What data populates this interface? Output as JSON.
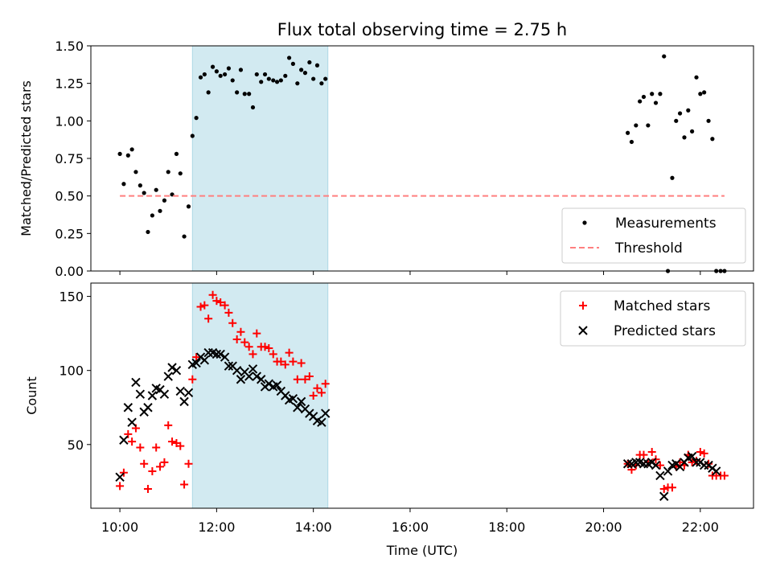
{
  "chart_data": {
    "type": "scatter",
    "title": "Flux total observing time = 2.75 h",
    "xlabel": "Time (UTC)",
    "x_unit": "hours UTC",
    "xlim": [
      9.4,
      23.1
    ],
    "x_ticks": [
      {
        "value": 10,
        "label": "10:00"
      },
      {
        "value": 12,
        "label": "12:00"
      },
      {
        "value": 14,
        "label": "14:00"
      },
      {
        "value": 16,
        "label": "16:00"
      },
      {
        "value": 18,
        "label": "18:00"
      },
      {
        "value": 20,
        "label": "20:00"
      },
      {
        "value": 22,
        "label": "22:00"
      }
    ],
    "highlight_span": [
      11.5,
      14.3
    ],
    "colors": {
      "highlight": "#add8e6",
      "threshold": "#ff7f7f",
      "matched": "#ff0000",
      "predicted": "#000000",
      "measurement": "#000000"
    },
    "panels": [
      {
        "ylabel": "Matched/Predicted stars",
        "ylim": [
          0,
          1.5
        ],
        "y_ticks": [
          "0.00",
          "0.25",
          "0.50",
          "0.75",
          "1.00",
          "1.25",
          "1.50"
        ],
        "legend": {
          "placement": "lower-right"
        },
        "series": [
          {
            "name": "Measurements",
            "kind": "dot",
            "points": [
              [
                10.0,
                0.78
              ],
              [
                10.08,
                0.58
              ],
              [
                10.17,
                0.77
              ],
              [
                10.25,
                0.81
              ],
              [
                10.33,
                0.66
              ],
              [
                10.42,
                0.57
              ],
              [
                10.5,
                0.52
              ],
              [
                10.58,
                0.26
              ],
              [
                10.67,
                0.37
              ],
              [
                10.75,
                0.54
              ],
              [
                10.83,
                0.4
              ],
              [
                10.92,
                0.47
              ],
              [
                11.0,
                0.66
              ],
              [
                11.08,
                0.51
              ],
              [
                11.17,
                0.78
              ],
              [
                11.25,
                0.65
              ],
              [
                11.33,
                0.23
              ],
              [
                11.42,
                0.43
              ],
              [
                11.5,
                0.9
              ],
              [
                11.58,
                1.02
              ],
              [
                11.67,
                1.29
              ],
              [
                11.75,
                1.31
              ],
              [
                11.83,
                1.19
              ],
              [
                11.92,
                1.36
              ],
              [
                12.0,
                1.33
              ],
              [
                12.08,
                1.3
              ],
              [
                12.17,
                1.31
              ],
              [
                12.25,
                1.35
              ],
              [
                12.33,
                1.27
              ],
              [
                12.42,
                1.19
              ],
              [
                12.5,
                1.34
              ],
              [
                12.58,
                1.18
              ],
              [
                12.67,
                1.18
              ],
              [
                12.75,
                1.09
              ],
              [
                12.83,
                1.31
              ],
              [
                12.92,
                1.26
              ],
              [
                13.0,
                1.31
              ],
              [
                13.08,
                1.28
              ],
              [
                13.17,
                1.27
              ],
              [
                13.25,
                1.26
              ],
              [
                13.33,
                1.27
              ],
              [
                13.42,
                1.3
              ],
              [
                13.5,
                1.42
              ],
              [
                13.58,
                1.38
              ],
              [
                13.67,
                1.25
              ],
              [
                13.75,
                1.34
              ],
              [
                13.83,
                1.32
              ],
              [
                13.92,
                1.39
              ],
              [
                14.0,
                1.28
              ],
              [
                14.08,
                1.37
              ],
              [
                14.17,
                1.25
              ],
              [
                14.25,
                1.28
              ],
              [
                20.5,
                0.92
              ],
              [
                20.58,
                0.86
              ],
              [
                20.67,
                0.97
              ],
              [
                20.75,
                1.13
              ],
              [
                20.83,
                1.16
              ],
              [
                20.92,
                0.97
              ],
              [
                21.0,
                1.18
              ],
              [
                21.08,
                1.12
              ],
              [
                21.17,
                1.18
              ],
              [
                21.25,
                1.43
              ],
              [
                21.33,
                0.0
              ],
              [
                21.42,
                0.62
              ],
              [
                21.5,
                1.0
              ],
              [
                21.58,
                1.05
              ],
              [
                21.67,
                0.89
              ],
              [
                21.75,
                1.07
              ],
              [
                21.83,
                0.93
              ],
              [
                21.92,
                1.29
              ],
              [
                22.0,
                1.18
              ],
              [
                22.08,
                1.19
              ],
              [
                22.17,
                1.0
              ],
              [
                22.25,
                0.88
              ],
              [
                22.33,
                0.0
              ],
              [
                22.42,
                0.0
              ],
              [
                22.5,
                0.0
              ]
            ]
          },
          {
            "name": "Threshold",
            "kind": "dashed-line",
            "points": [
              [
                10.0,
                0.5
              ],
              [
                22.5,
                0.5
              ]
            ]
          }
        ]
      },
      {
        "ylabel": "Count",
        "ylim": [
          7,
          159
        ],
        "y_ticks": [
          "50",
          "100",
          "150"
        ],
        "legend": {
          "placement": "top-right"
        },
        "series": [
          {
            "name": "Matched stars",
            "kind": "plus",
            "points": [
              [
                10.0,
                22
              ],
              [
                10.08,
                31
              ],
              [
                10.17,
                57
              ],
              [
                10.25,
                52
              ],
              [
                10.33,
                61
              ],
              [
                10.42,
                48
              ],
              [
                10.5,
                37
              ],
              [
                10.58,
                20
              ],
              [
                10.67,
                32
              ],
              [
                10.75,
                48
              ],
              [
                10.83,
                35
              ],
              [
                10.92,
                38
              ],
              [
                11.0,
                63
              ],
              [
                11.08,
                52
              ],
              [
                11.17,
                51
              ],
              [
                11.25,
                49
              ],
              [
                11.33,
                23
              ],
              [
                11.42,
                37
              ],
              [
                11.5,
                94
              ],
              [
                11.58,
                109
              ],
              [
                11.67,
                143
              ],
              [
                11.75,
                144
              ],
              [
                11.83,
                135
              ],
              [
                11.92,
                151
              ],
              [
                12.0,
                147
              ],
              [
                12.08,
                146
              ],
              [
                12.17,
                144
              ],
              [
                12.25,
                139
              ],
              [
                12.33,
                132
              ],
              [
                12.42,
                121
              ],
              [
                12.5,
                126
              ],
              [
                12.58,
                119
              ],
              [
                12.67,
                116
              ],
              [
                12.75,
                111
              ],
              [
                12.83,
                125
              ],
              [
                12.92,
                116
              ],
              [
                13.0,
                116
              ],
              [
                13.08,
                115
              ],
              [
                13.17,
                111
              ],
              [
                13.25,
                106
              ],
              [
                13.33,
                106
              ],
              [
                13.42,
                104
              ],
              [
                13.5,
                112
              ],
              [
                13.58,
                106
              ],
              [
                13.67,
                94
              ],
              [
                13.75,
                105
              ],
              [
                13.83,
                94
              ],
              [
                13.92,
                96
              ],
              [
                14.0,
                83
              ],
              [
                14.08,
                88
              ],
              [
                14.17,
                85
              ],
              [
                14.25,
                91
              ],
              [
                20.5,
                37
              ],
              [
                20.58,
                33
              ],
              [
                20.67,
                36
              ],
              [
                20.75,
                43
              ],
              [
                20.83,
                43
              ],
              [
                20.92,
                38
              ],
              [
                21.0,
                45
              ],
              [
                21.08,
                40
              ],
              [
                21.17,
                36
              ],
              [
                21.25,
                20
              ],
              [
                21.33,
                21
              ],
              [
                21.42,
                21
              ],
              [
                21.5,
                35
              ],
              [
                21.58,
                38
              ],
              [
                21.67,
                36
              ],
              [
                21.75,
                43
              ],
              [
                21.83,
                38
              ],
              [
                21.92,
                39
              ],
              [
                22.0,
                45
              ],
              [
                22.08,
                44
              ],
              [
                22.17,
                37
              ],
              [
                22.25,
                29
              ],
              [
                22.33,
                29
              ],
              [
                22.42,
                29
              ],
              [
                22.5,
                29
              ]
            ]
          },
          {
            "name": "Predicted stars",
            "kind": "cross",
            "points": [
              [
                10.0,
                28
              ],
              [
                10.08,
                53
              ],
              [
                10.17,
                75
              ],
              [
                10.25,
                65
              ],
              [
                10.33,
                92
              ],
              [
                10.42,
                84
              ],
              [
                10.5,
                72
              ],
              [
                10.58,
                75
              ],
              [
                10.67,
                83
              ],
              [
                10.75,
                88
              ],
              [
                10.83,
                87
              ],
              [
                10.92,
                84
              ],
              [
                11.0,
                96
              ],
              [
                11.08,
                102
              ],
              [
                11.17,
                100
              ],
              [
                11.25,
                86
              ],
              [
                11.33,
                79
              ],
              [
                11.42,
                85
              ],
              [
                11.5,
                104
              ],
              [
                11.58,
                105
              ],
              [
                11.67,
                109
              ],
              [
                11.75,
                107
              ],
              [
                11.83,
                112
              ],
              [
                11.92,
                112
              ],
              [
                12.0,
                111
              ],
              [
                12.08,
                111
              ],
              [
                12.17,
                109
              ],
              [
                12.25,
                103
              ],
              [
                12.33,
                103
              ],
              [
                12.42,
                100
              ],
              [
                12.5,
                94
              ],
              [
                12.58,
                99
              ],
              [
                12.67,
                96
              ],
              [
                12.75,
                101
              ],
              [
                12.83,
                96
              ],
              [
                12.92,
                94
              ],
              [
                13.0,
                89
              ],
              [
                13.08,
                91
              ],
              [
                13.17,
                89
              ],
              [
                13.25,
                90
              ],
              [
                13.33,
                86
              ],
              [
                13.42,
                83
              ],
              [
                13.5,
                80
              ],
              [
                13.58,
                81
              ],
              [
                13.67,
                75
              ],
              [
                13.75,
                79
              ],
              [
                13.83,
                74
              ],
              [
                13.92,
                71
              ],
              [
                14.0,
                69
              ],
              [
                14.08,
                66
              ],
              [
                14.17,
                65
              ],
              [
                14.25,
                71
              ],
              [
                20.5,
                37
              ],
              [
                20.58,
                37
              ],
              [
                20.67,
                38
              ],
              [
                20.75,
                38
              ],
              [
                20.83,
                37
              ],
              [
                20.92,
                37
              ],
              [
                21.0,
                38
              ],
              [
                21.08,
                36
              ],
              [
                21.17,
                29
              ],
              [
                21.25,
                15
              ],
              [
                21.33,
                32
              ],
              [
                21.42,
                36
              ],
              [
                21.5,
                37
              ],
              [
                21.58,
                35
              ],
              [
                21.67,
                38
              ],
              [
                21.75,
                41
              ],
              [
                21.83,
                42
              ],
              [
                21.92,
                38
              ],
              [
                22.0,
                38
              ],
              [
                22.08,
                36
              ],
              [
                22.17,
                36
              ],
              [
                22.25,
                34
              ],
              [
                22.33,
                32
              ]
            ]
          }
        ]
      }
    ]
  }
}
